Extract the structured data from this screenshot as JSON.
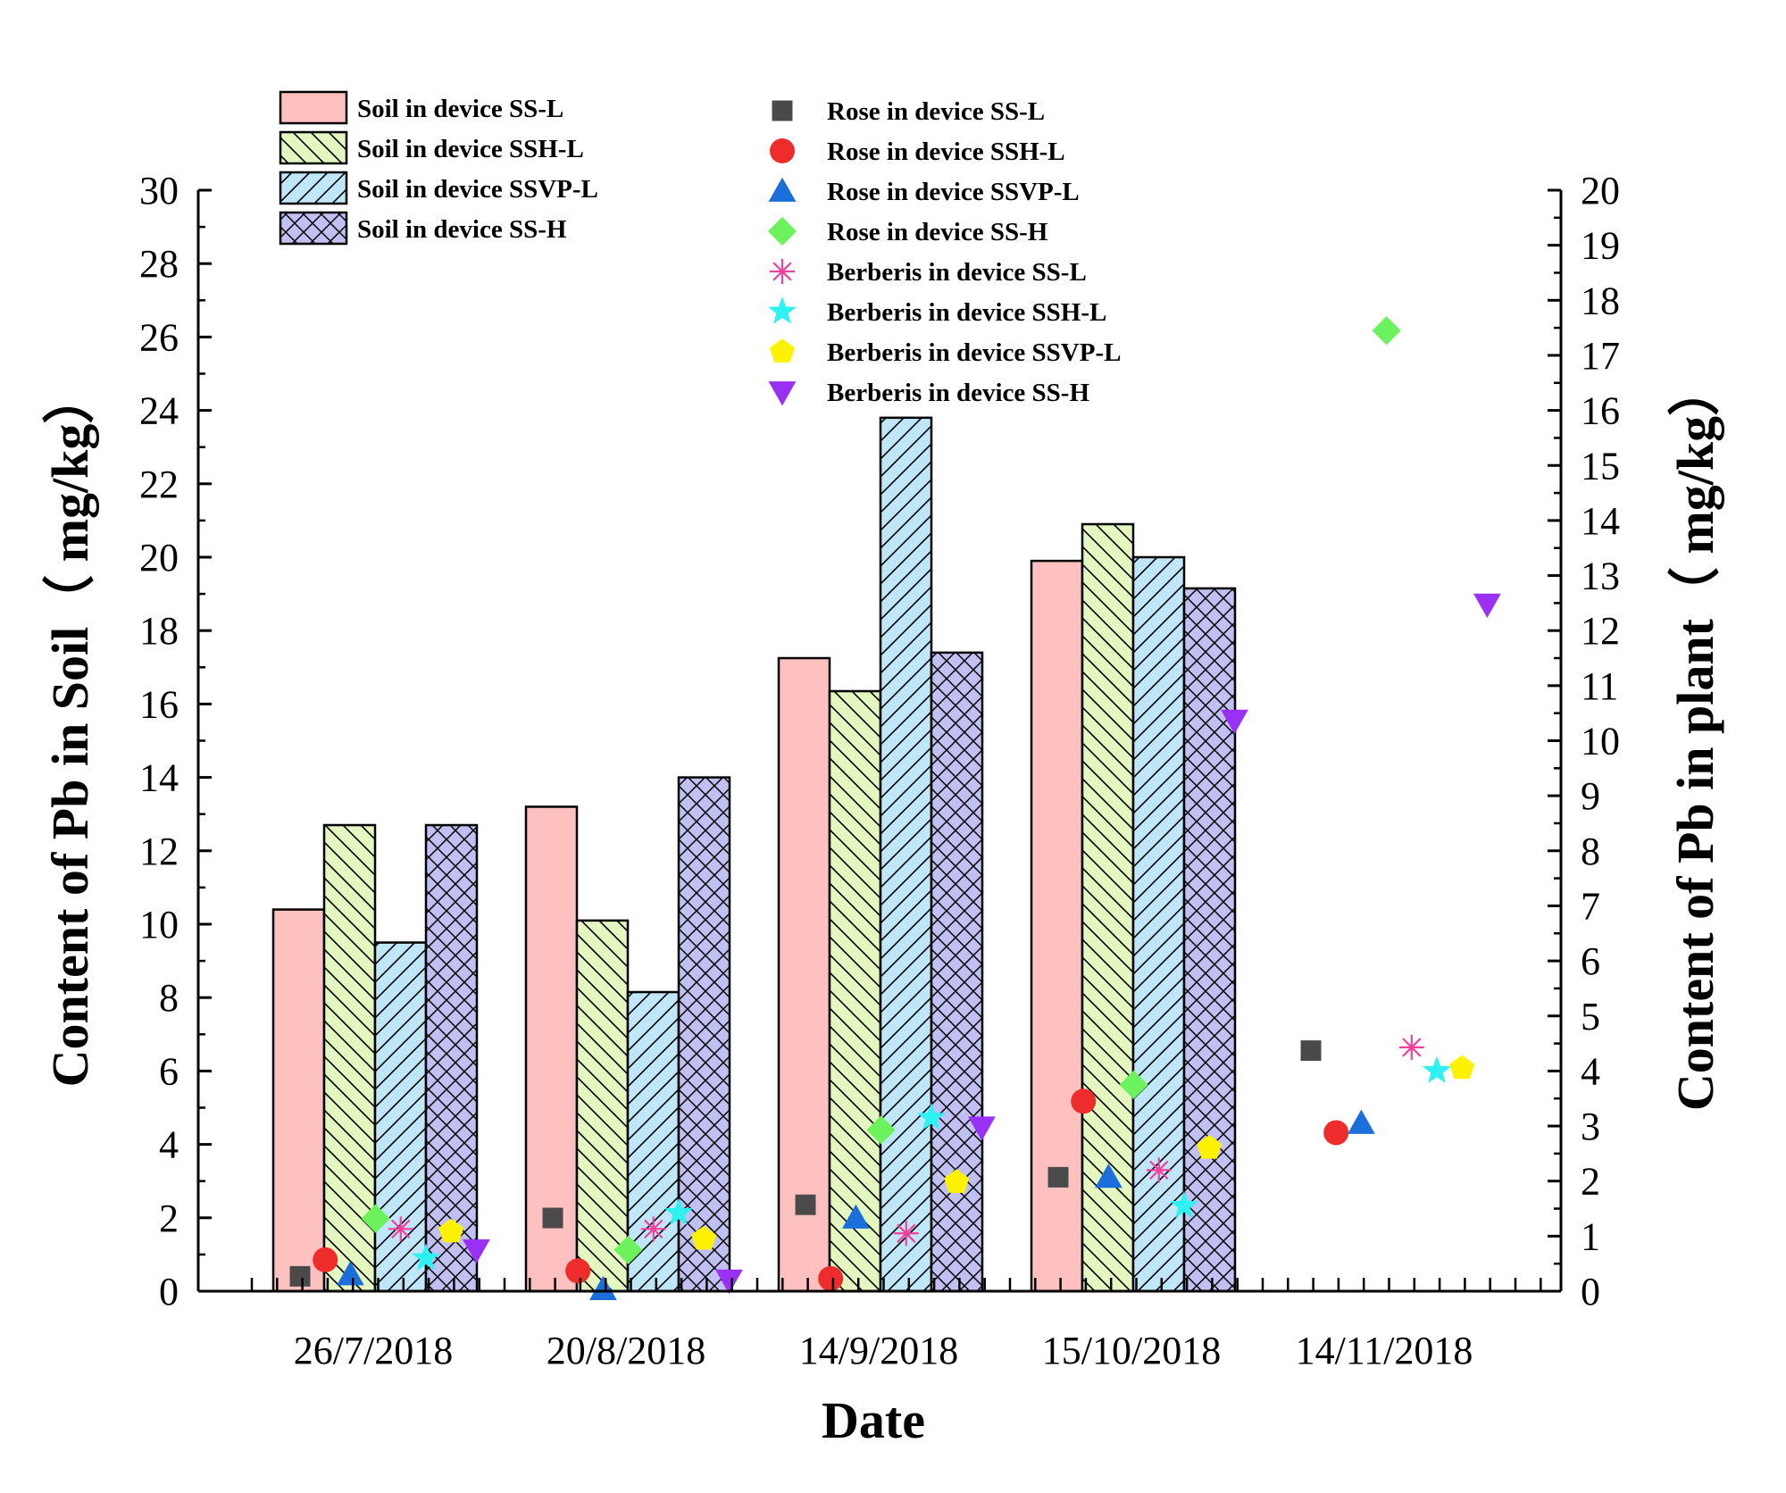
{
  "chart_data": {
    "type": "bar",
    "xlabel": "Date",
    "ylabel_left": "Content of Pb in Soil（ mg/kg）",
    "ylabel_right": "Content of Pb in plant（ mg/kg）",
    "ylim_left": [
      0,
      30
    ],
    "ylim_right": [
      0,
      20
    ],
    "left_ticks": [
      "0",
      "2",
      "4",
      "6",
      "8",
      "10",
      "12",
      "14",
      "16",
      "18",
      "20",
      "22",
      "24",
      "26",
      "28",
      "30"
    ],
    "right_ticks": [
      "0",
      "1",
      "2",
      "3",
      "4",
      "5",
      "6",
      "7",
      "8",
      "9",
      "10",
      "11",
      "12",
      "13",
      "14",
      "15",
      "16",
      "17",
      "18",
      "19",
      "20"
    ],
    "categories": [
      "26/7/2018",
      "20/8/2018",
      "14/9/2018",
      "15/10/2018",
      "14/11/2018"
    ],
    "bar_series": [
      {
        "name": "Soil in device SS-L",
        "fill": "#FFC0C0",
        "pattern": "none",
        "values": [
          10.4,
          13.2,
          17.25,
          19.9,
          null
        ]
      },
      {
        "name": "Soil in device SSH-L",
        "fill": "#E4F7C0",
        "pattern": "backslash",
        "values": [
          12.7,
          10.1,
          16.35,
          20.9,
          null
        ]
      },
      {
        "name": "Soil in device SSVP-L",
        "fill": "#C0E6FA",
        "pattern": "slash",
        "values": [
          9.5,
          8.15,
          23.8,
          20.0,
          null
        ]
      },
      {
        "name": "Soil in device SS-H",
        "fill": "#C0C0F2",
        "pattern": "cross",
        "values": [
          12.7,
          14.0,
          17.4,
          19.15,
          null
        ]
      }
    ],
    "scatter_series": [
      {
        "name": "Rose in device SS-L",
        "color": "#4A4A4A",
        "marker": "square",
        "values": [
          0.27,
          1.33,
          1.57,
          2.07,
          4.37
        ]
      },
      {
        "name": "Rose in device SSH-L",
        "color": "#EE2C2C",
        "marker": "circle",
        "values": [
          0.57,
          0.37,
          0.23,
          3.45,
          2.88
        ]
      },
      {
        "name": "Rose in device SSVP-L",
        "color": "#1C6FDB",
        "marker": "triangle-up",
        "values": [
          0.3,
          0.03,
          1.33,
          2.07,
          3.05
        ]
      },
      {
        "name": "Rose in device SS-H",
        "color": "#6CF25C",
        "marker": "diamond",
        "values": [
          1.32,
          0.75,
          2.93,
          3.75,
          17.45
        ]
      },
      {
        "name": "Berberis in device SS-L",
        "color": "#F2409C",
        "marker": "asterisk",
        "values": [
          1.13,
          1.13,
          1.05,
          2.2,
          4.43
        ]
      },
      {
        "name": "Berberis in device SSH-L",
        "color": "#2EF2F2",
        "marker": "star",
        "values": [
          0.6,
          1.42,
          3.15,
          1.55,
          4.0
        ]
      },
      {
        "name": "Berberis in device SSVP-L",
        "color": "#FFF200",
        "marker": "pentagon",
        "values": [
          1.08,
          0.95,
          1.98,
          2.6,
          4.05
        ]
      },
      {
        "name": "Berberis in device SS-H",
        "color": "#9B30F5",
        "marker": "triangle-down",
        "values": [
          0.75,
          0.2,
          2.98,
          10.37,
          12.48
        ]
      }
    ]
  }
}
